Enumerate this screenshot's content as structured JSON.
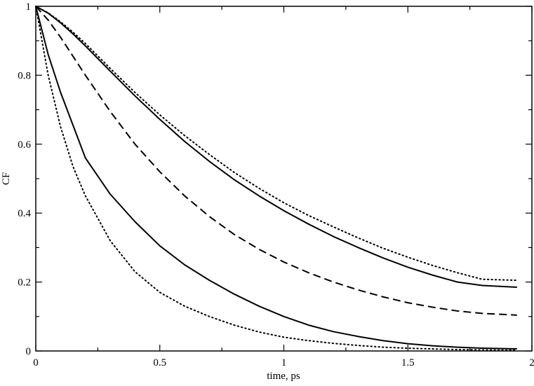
{
  "chart_data": {
    "type": "line",
    "xlabel": "time, ps",
    "ylabel": "CF",
    "xlim": [
      0,
      2
    ],
    "ylim": [
      0,
      1
    ],
    "grid": false,
    "x_ticks": [
      {
        "value": 0,
        "label": "0"
      },
      {
        "value": 0.5,
        "label": "0.5"
      },
      {
        "value": 1,
        "label": "1"
      },
      {
        "value": 1.5,
        "label": "1.5"
      },
      {
        "value": 2,
        "label": "2"
      }
    ],
    "y_ticks": [
      {
        "value": 0,
        "label": "0"
      },
      {
        "value": 0.2,
        "label": "0.2"
      },
      {
        "value": 0.4,
        "label": "0.4"
      },
      {
        "value": 0.6,
        "label": "0.6"
      },
      {
        "value": 0.8,
        "label": "0.8"
      },
      {
        "value": 1,
        "label": "1"
      }
    ],
    "x": [
      0,
      0.05,
      0.1,
      0.15,
      0.2,
      0.3,
      0.4,
      0.5,
      0.6,
      0.7,
      0.8,
      0.9,
      1.0,
      1.1,
      1.2,
      1.3,
      1.4,
      1.5,
      1.6,
      1.7,
      1.8,
      1.94
    ],
    "series": [
      {
        "style": "dotted",
        "color": "#000000",
        "values": [
          1.0,
          0.981,
          0.955,
          0.925,
          0.892,
          0.82,
          0.75,
          0.685,
          0.625,
          0.57,
          0.518,
          0.472,
          0.43,
          0.393,
          0.36,
          0.328,
          0.298,
          0.272,
          0.248,
          0.227,
          0.208,
          0.205
        ]
      },
      {
        "style": "solid",
        "color": "#000000",
        "values": [
          1.0,
          0.98,
          0.952,
          0.92,
          0.885,
          0.812,
          0.74,
          0.672,
          0.608,
          0.55,
          0.497,
          0.45,
          0.407,
          0.368,
          0.332,
          0.3,
          0.27,
          0.243,
          0.22,
          0.2,
          0.19,
          0.185
        ]
      },
      {
        "style": "dashed",
        "color": "#000000",
        "values": [
          1.0,
          0.96,
          0.91,
          0.855,
          0.8,
          0.695,
          0.6,
          0.52,
          0.45,
          0.39,
          0.338,
          0.295,
          0.258,
          0.227,
          0.2,
          0.177,
          0.157,
          0.14,
          0.127,
          0.116,
          0.109,
          0.104
        ]
      },
      {
        "style": "solid",
        "color": "#000000",
        "values": [
          1.0,
          0.86,
          0.75,
          0.655,
          0.56,
          0.455,
          0.375,
          0.305,
          0.25,
          0.205,
          0.165,
          0.13,
          0.1,
          0.075,
          0.056,
          0.042,
          0.03,
          0.021,
          0.015,
          0.011,
          0.008,
          0.006
        ]
      },
      {
        "style": "dotted",
        "color": "#000000",
        "values": [
          1.0,
          0.8,
          0.65,
          0.535,
          0.45,
          0.32,
          0.23,
          0.17,
          0.13,
          0.1,
          0.075,
          0.055,
          0.04,
          0.03,
          0.022,
          0.016,
          0.011,
          0.008,
          0.006,
          0.004,
          0.003,
          0.002
        ]
      }
    ]
  }
}
